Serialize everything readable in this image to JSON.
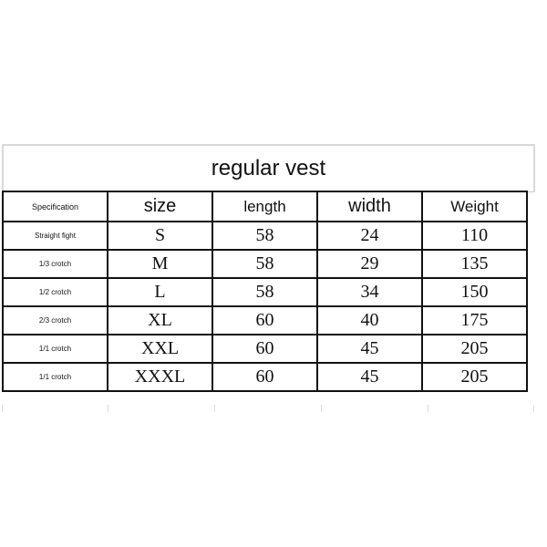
{
  "title": "regular vest",
  "headers": [
    "Specification",
    "size",
    "length",
    "width",
    "Weight"
  ],
  "rows": [
    [
      "Straight fight",
      "S",
      "58",
      "24",
      "110"
    ],
    [
      "1/3 crotch",
      "M",
      "58",
      "29",
      "135"
    ],
    [
      "1/2 crotch",
      "L",
      "58",
      "34",
      "150"
    ],
    [
      "2/3 crotch",
      "XL",
      "60",
      "40",
      "175"
    ],
    [
      "1/1 crotch",
      "XXL",
      "60",
      "45",
      "205"
    ],
    [
      "1/1 crotch",
      "XXXL",
      "60",
      "45",
      "205"
    ]
  ]
}
